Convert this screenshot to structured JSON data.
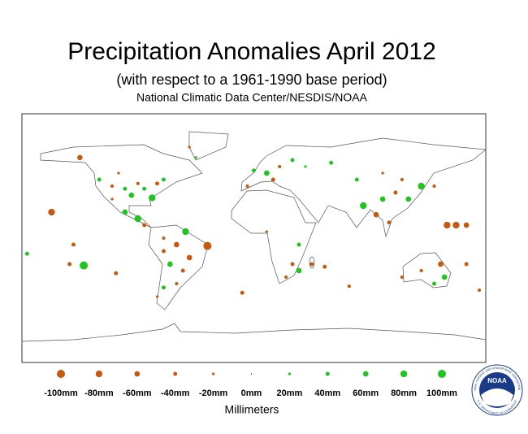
{
  "header": {
    "title": "Precipitation Anomalies April 2012",
    "subtitle": "(with respect to a 1961-1990 base period)",
    "source": "National Climatic Data Center/NESDIS/NOAA"
  },
  "legend": {
    "unit_label": "Millimeters",
    "colors": {
      "negative": "#c6590f",
      "positive": "#1fc41f"
    },
    "items": [
      {
        "value": -100,
        "label": "-100mm"
      },
      {
        "value": -80,
        "label": "-80mm"
      },
      {
        "value": -60,
        "label": "-60mm"
      },
      {
        "value": -40,
        "label": "-40mm"
      },
      {
        "value": -20,
        "label": "-20mm"
      },
      {
        "value": 0,
        "label": "0mm"
      },
      {
        "value": 20,
        "label": "20mm"
      },
      {
        "value": 40,
        "label": "40mm"
      },
      {
        "value": 60,
        "label": "60mm"
      },
      {
        "value": 80,
        "label": "80mm"
      },
      {
        "value": 100,
        "label": "100mm"
      }
    ]
  },
  "logo": {
    "name": "NOAA",
    "ring_top": "NATIONAL OCEANIC AND ATMOSPHERIC ADMINISTRATION",
    "ring_bottom": "U.S. DEPARTMENT OF COMMERCE"
  },
  "stations": [
    {
      "lon": -157,
      "lat": 20,
      "value": -80
    },
    {
      "lon": -140,
      "lat": -5,
      "value": -40
    },
    {
      "lon": -132,
      "lat": -21,
      "value": 100
    },
    {
      "lon": -143,
      "lat": -20,
      "value": -40
    },
    {
      "lon": -107,
      "lat": -27,
      "value": -40
    },
    {
      "lon": -176,
      "lat": -12,
      "value": 40
    },
    {
      "lon": -79,
      "lat": 31,
      "value": 80
    },
    {
      "lon": -135,
      "lat": 62,
      "value": -60
    },
    {
      "lon": -120,
      "lat": 45,
      "value": 40
    },
    {
      "lon": -110,
      "lat": 40,
      "value": -30
    },
    {
      "lon": -100,
      "lat": 38,
      "value": 40
    },
    {
      "lon": -95,
      "lat": 33,
      "value": 60
    },
    {
      "lon": -90,
      "lat": 42,
      "value": -30
    },
    {
      "lon": -85,
      "lat": 38,
      "value": 40
    },
    {
      "lon": -105,
      "lat": 50,
      "value": -20
    },
    {
      "lon": -75,
      "lat": 42,
      "value": -40
    },
    {
      "lon": -70,
      "lat": 45,
      "value": 40
    },
    {
      "lon": -110,
      "lat": 30,
      "value": -20
    },
    {
      "lon": -100,
      "lat": 20,
      "value": 60
    },
    {
      "lon": -90,
      "lat": 15,
      "value": 80
    },
    {
      "lon": -85,
      "lat": 10,
      "value": -40
    },
    {
      "lon": -36,
      "lat": -6,
      "value": -100
    },
    {
      "lon": -53,
      "lat": 5,
      "value": 80
    },
    {
      "lon": -60,
      "lat": -5,
      "value": -60
    },
    {
      "lon": -70,
      "lat": -10,
      "value": -40
    },
    {
      "lon": -65,
      "lat": -20,
      "value": 60
    },
    {
      "lon": -55,
      "lat": -25,
      "value": -40
    },
    {
      "lon": -60,
      "lat": -35,
      "value": -30
    },
    {
      "lon": -70,
      "lat": -38,
      "value": 40
    },
    {
      "lon": -50,
      "lat": -15,
      "value": -60
    },
    {
      "lon": -70,
      "lat": 0,
      "value": -30
    },
    {
      "lon": -75,
      "lat": -45,
      "value": -20
    },
    {
      "lon": -45,
      "lat": 62,
      "value": 20
    },
    {
      "lon": -50,
      "lat": 70,
      "value": -20
    },
    {
      "lon": 0,
      "lat": 52,
      "value": 40
    },
    {
      "lon": 10,
      "lat": 50,
      "value": 60
    },
    {
      "lon": 20,
      "lat": 55,
      "value": -30
    },
    {
      "lon": 30,
      "lat": 60,
      "value": 40
    },
    {
      "lon": -5,
      "lat": 40,
      "value": -30
    },
    {
      "lon": 15,
      "lat": 45,
      "value": -40
    },
    {
      "lon": 40,
      "lat": 55,
      "value": 20
    },
    {
      "lon": 60,
      "lat": 58,
      "value": 40
    },
    {
      "lon": 85,
      "lat": 25,
      "value": 80
    },
    {
      "lon": 100,
      "lat": 30,
      "value": 60
    },
    {
      "lon": 110,
      "lat": 35,
      "value": -40
    },
    {
      "lon": 120,
      "lat": 30,
      "value": 60
    },
    {
      "lon": 130,
      "lat": 40,
      "value": 80
    },
    {
      "lon": 115,
      "lat": 45,
      "value": -30
    },
    {
      "lon": 80,
      "lat": 45,
      "value": 40
    },
    {
      "lon": 100,
      "lat": 50,
      "value": -20
    },
    {
      "lon": 140,
      "lat": 40,
      "value": -30
    },
    {
      "lon": 95,
      "lat": 18,
      "value": -60
    },
    {
      "lon": 105,
      "lat": 12,
      "value": -40
    },
    {
      "lon": 150,
      "lat": 10,
      "value": -80
    },
    {
      "lon": 157,
      "lat": 10,
      "value": -80
    },
    {
      "lon": 165,
      "lat": 10,
      "value": -60
    },
    {
      "lon": 35,
      "lat": -5,
      "value": 40
    },
    {
      "lon": 30,
      "lat": -20,
      "value": -40
    },
    {
      "lon": 35,
      "lat": -25,
      "value": 60
    },
    {
      "lon": 25,
      "lat": -30,
      "value": -30
    },
    {
      "lon": 10,
      "lat": 5,
      "value": -20
    },
    {
      "lon": 45,
      "lat": -20,
      "value": -40
    },
    {
      "lon": 55,
      "lat": -22,
      "value": -40
    },
    {
      "lon": 74,
      "lat": -37,
      "value": -30
    },
    {
      "lon": -9,
      "lat": -42,
      "value": -40
    },
    {
      "lon": 145,
      "lat": -20,
      "value": -60
    },
    {
      "lon": 148,
      "lat": -30,
      "value": 60
    },
    {
      "lon": 130,
      "lat": -25,
      "value": -30
    },
    {
      "lon": 115,
      "lat": -30,
      "value": -30
    },
    {
      "lon": 140,
      "lat": -35,
      "value": 40
    },
    {
      "lon": 175,
      "lat": -40,
      "value": -30
    },
    {
      "lon": 165,
      "lat": -20,
      "value": -40
    }
  ]
}
